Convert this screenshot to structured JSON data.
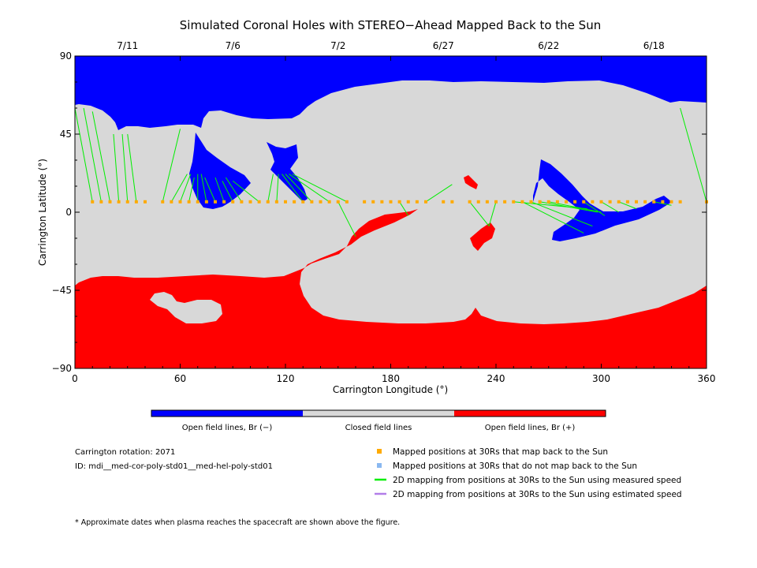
{
  "chart_data": {
    "type": "map",
    "title": "Simulated Coronal Holes with STEREO−Ahead Mapped Back to the Sun",
    "xlabel": "Carrington Longitude (°)",
    "ylabel": "Carrington Latitude (°)",
    "xlim": [
      0,
      360
    ],
    "ylim": [
      -90,
      90
    ],
    "x_ticks": [
      "0",
      "60",
      "120",
      "180",
      "240",
      "300",
      "360"
    ],
    "y_ticks": [
      "90",
      "45",
      "0",
      "−45",
      "−90"
    ],
    "top_dates": [
      {
        "lon": 30,
        "label": "7/11"
      },
      {
        "lon": 90,
        "label": "7/6"
      },
      {
        "lon": 150,
        "label": "7/2"
      },
      {
        "lon": 210,
        "label": "6/27"
      },
      {
        "lon": 270,
        "label": "6/22"
      },
      {
        "lon": 330,
        "label": "6/18"
      }
    ],
    "colors": {
      "open_negative": "#0000ff",
      "closed": "#d8d8d8",
      "open_positive": "#ff0000",
      "mapped_point": "#ffaa00",
      "unmapped_point": "#8ab8f0",
      "measured_line": "#00ee00",
      "estimated_line": "#b27de8"
    },
    "mapped_latitude": 6,
    "mapped_longitudes": [
      10,
      15,
      20,
      25,
      30,
      35,
      40,
      50,
      55,
      60,
      65,
      70,
      75,
      80,
      85,
      90,
      95,
      100,
      105,
      110,
      115,
      120,
      125,
      130,
      135,
      140,
      145,
      150,
      155,
      165,
      170,
      175,
      180,
      185,
      190,
      195,
      200,
      210,
      215,
      225,
      230,
      235,
      240,
      245,
      250,
      255,
      260,
      265,
      270,
      275,
      280,
      285,
      290,
      295,
      300,
      305,
      310,
      315,
      320,
      325,
      330,
      335,
      340,
      345,
      360
    ],
    "mapping_lines": [
      {
        "from": [
          10,
          6
        ],
        "to": [
          0,
          60
        ]
      },
      {
        "from": [
          15,
          6
        ],
        "to": [
          5,
          60
        ]
      },
      {
        "from": [
          20,
          6
        ],
        "to": [
          10,
          58
        ]
      },
      {
        "from": [
          25,
          6
        ],
        "to": [
          22,
          45
        ]
      },
      {
        "from": [
          30,
          6
        ],
        "to": [
          27,
          45
        ]
      },
      {
        "from": [
          35,
          6
        ],
        "to": [
          30,
          45
        ]
      },
      {
        "from": [
          50,
          6
        ],
        "to": [
          60,
          48
        ]
      },
      {
        "from": [
          55,
          6
        ],
        "to": [
          64,
          22
        ]
      },
      {
        "from": [
          60,
          6
        ],
        "to": [
          66,
          22
        ]
      },
      {
        "from": [
          65,
          6
        ],
        "to": [
          68,
          20
        ]
      },
      {
        "from": [
          70,
          6
        ],
        "to": [
          70,
          22
        ]
      },
      {
        "from": [
          75,
          6
        ],
        "to": [
          72,
          22
        ]
      },
      {
        "from": [
          80,
          6
        ],
        "to": [
          74,
          20
        ]
      },
      {
        "from": [
          85,
          6
        ],
        "to": [
          80,
          20
        ]
      },
      {
        "from": [
          90,
          6
        ],
        "to": [
          84,
          18
        ]
      },
      {
        "from": [
          95,
          6
        ],
        "to": [
          86,
          20
        ]
      },
      {
        "from": [
          105,
          6
        ],
        "to": [
          90,
          18
        ]
      },
      {
        "from": [
          110,
          6
        ],
        "to": [
          113,
          22
        ]
      },
      {
        "from": [
          115,
          6
        ],
        "to": [
          116,
          22
        ]
      },
      {
        "from": [
          130,
          6
        ],
        "to": [
          118,
          22
        ]
      },
      {
        "from": [
          135,
          6
        ],
        "to": [
          120,
          22
        ]
      },
      {
        "from": [
          145,
          6
        ],
        "to": [
          122,
          22
        ]
      },
      {
        "from": [
          155,
          6
        ],
        "to": [
          124,
          22
        ]
      },
      {
        "from": [
          160,
          -14
        ],
        "to": [
          150,
          6
        ]
      },
      {
        "from": [
          185,
          6
        ],
        "to": [
          190,
          -2
        ]
      },
      {
        "from": [
          200,
          6
        ],
        "to": [
          215,
          16
        ]
      },
      {
        "from": [
          225,
          6
        ],
        "to": [
          236,
          -8
        ]
      },
      {
        "from": [
          240,
          6
        ],
        "to": [
          236,
          -8
        ]
      },
      {
        "from": [
          250,
          6
        ],
        "to": [
          292,
          2
        ]
      },
      {
        "from": [
          255,
          6
        ],
        "to": [
          290,
          -12
        ]
      },
      {
        "from": [
          260,
          6
        ],
        "to": [
          295,
          -8
        ]
      },
      {
        "from": [
          265,
          6
        ],
        "to": [
          298,
          0
        ]
      },
      {
        "from": [
          270,
          6
        ],
        "to": [
          300,
          0
        ]
      },
      {
        "from": [
          290,
          6
        ],
        "to": [
          302,
          -2
        ]
      },
      {
        "from": [
          300,
          6
        ],
        "to": [
          310,
          0
        ]
      },
      {
        "from": [
          310,
          6
        ],
        "to": [
          320,
          2
        ]
      },
      {
        "from": [
          330,
          6
        ],
        "to": [
          340,
          4
        ]
      },
      {
        "from": [
          360,
          6
        ],
        "to": [
          345,
          60
        ]
      }
    ],
    "colorbar_labels": [
      "Open field lines, Br (−)",
      "Closed field lines",
      "Open field lines, Br (+)"
    ],
    "legend": [
      {
        "kind": "square",
        "color_key": "mapped_point",
        "label": "Mapped positions at 30Rs that map back to the Sun"
      },
      {
        "kind": "square",
        "color_key": "unmapped_point",
        "label": "Mapped positions at 30Rs that do not map back to the Sun"
      },
      {
        "kind": "line",
        "color_key": "measured_line",
        "label": "2D mapping from positions at 30Rs to the Sun using measured speed"
      },
      {
        "kind": "line",
        "color_key": "estimated_line",
        "label": "2D mapping from positions at 30Rs to the Sun using estimated speed"
      }
    ],
    "info": [
      "Carrington rotation: 2071",
      "ID: mdi__med-cor-poly-std01__med-hel-poly-std01"
    ],
    "footnote": "* Approximate dates when plasma reaches the spacecraft are shown above the figure."
  }
}
